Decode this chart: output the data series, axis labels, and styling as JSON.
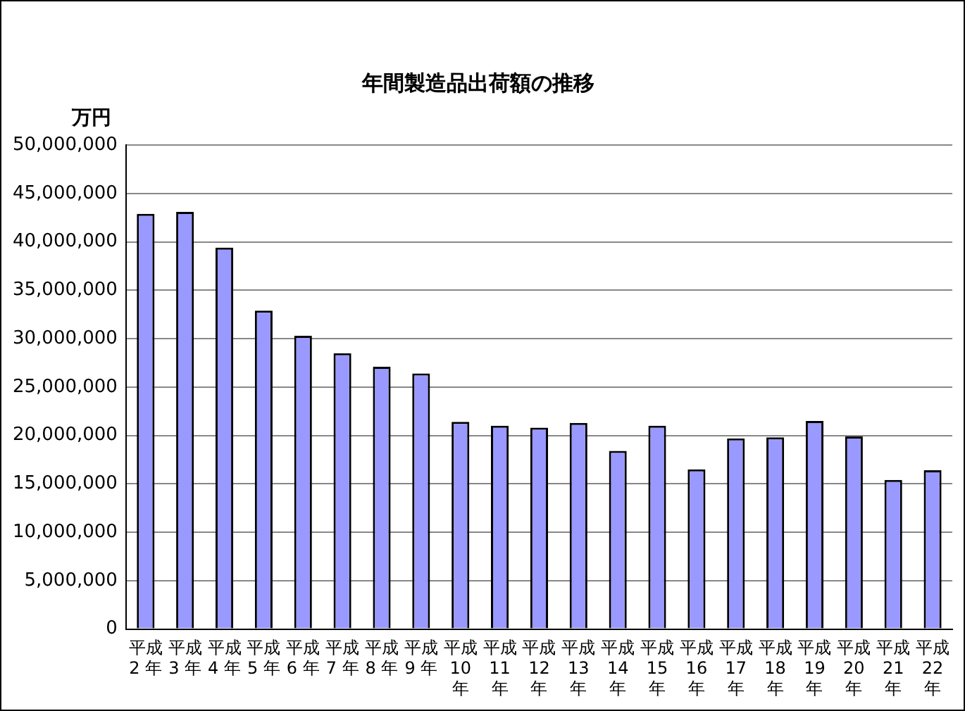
{
  "chart_data": {
    "type": "bar",
    "title": "年間製造品出荷額の推移",
    "ylabel": "万円",
    "categories": [
      "平成2 年",
      "平成3 年",
      "平成4 年",
      "平成5 年",
      "平成6 年",
      "平成7 年",
      "平成8 年",
      "平成9 年",
      "平成10年",
      "平成11年",
      "平成12年",
      "平成13年",
      "平成14年",
      "平成15年",
      "平成16年",
      "平成17年",
      "平成18年",
      "平成19年",
      "平成20年",
      "平成21年",
      "平成22年"
    ],
    "values": [
      42900000,
      43100000,
      39400000,
      32900000,
      30300000,
      28500000,
      27100000,
      26400000,
      21400000,
      21000000,
      20800000,
      21300000,
      18400000,
      21000000,
      16500000,
      19700000,
      19800000,
      21500000,
      19900000,
      15400000,
      16400000
    ],
    "color": "#9999ff",
    "ylim": [
      0,
      50000000
    ],
    "yticks": [
      0,
      {
        "value": 5000000,
        "label": "5,000,000"
      },
      {
        "value": 10000000,
        "label": "10,000,000"
      },
      {
        "value": 15000000,
        "label": "15,000,000"
      },
      {
        "value": 20000000,
        "label": "20,000,000"
      },
      {
        "value": 25000000,
        "label": "25,000,000"
      },
      {
        "value": 30000000,
        "label": "30,000,000"
      },
      {
        "value": 35000000,
        "label": "35,000,000"
      },
      {
        "value": 40000000,
        "label": "40,000,000"
      },
      {
        "value": 45000000,
        "label": "45,000,000"
      },
      {
        "value": 50000000,
        "label": "50,000,000"
      }
    ],
    "grid": "y",
    "legend": false
  }
}
